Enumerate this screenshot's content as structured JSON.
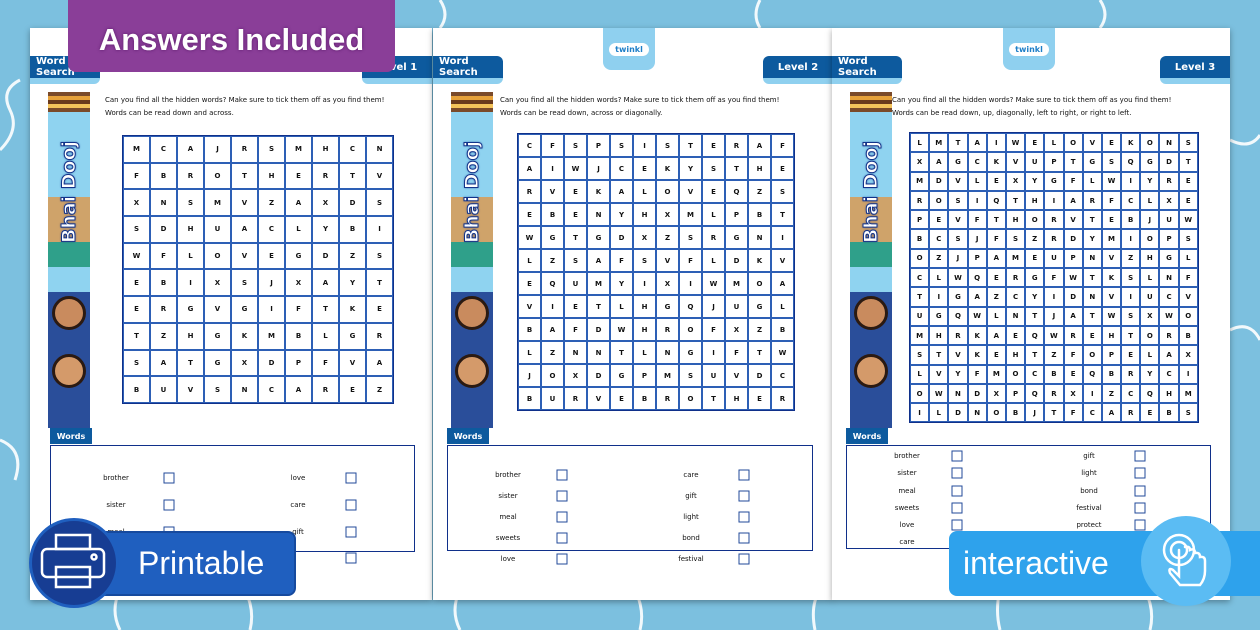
{
  "banner": {
    "answers": "Answers Included",
    "printable": "Printable",
    "interactive": "interactive"
  },
  "logo": "twinkl",
  "theme": "Bhai Dooj",
  "colors": {
    "header": "#0d5a9e",
    "answers_badge": "#8a3e98",
    "printable_badge": "#1f5fbf",
    "interactive_badge": "#2ea2ec",
    "background": "#7cc0df"
  },
  "pages": [
    {
      "header": "Word Search",
      "level": "Level 1",
      "instructions": [
        "Can you find all the hidden words? Make sure to tick them off as you find them!",
        "Words can be read down and across."
      ],
      "grid": [
        "MCAJRSMHCN",
        "FBROTHERTV",
        "XNSMVZAXDS",
        "SDHUACLYBI",
        "WFLOVEGDZS",
        "EBIXSJXAYT",
        "ERGVGIFTKE",
        "TZHGKMBLGR",
        "SATGXDPFVA",
        "BUVSNCAREZ"
      ],
      "words_label": "Words",
      "words_left": [
        "brother",
        "sister",
        "meal",
        ""
      ],
      "words_right": [
        "love",
        "care",
        "gift",
        ""
      ]
    },
    {
      "header": "Word Search",
      "level": "Level 2",
      "instructions": [
        "Can you find all the hidden words? Make sure to tick them off as you find them!",
        "Words can be read down, across or diagonally."
      ],
      "grid": [
        "CFSPSISTERAF",
        "AIWJCEKYSTHE",
        "RVEKALOVEQZS",
        "EBENYHXMLPBT",
        "WGTGDXZSRGNI",
        "LZSAFSVFLDKV",
        "EQUMYIXIWMOA",
        "VIETLHGQJUGL",
        "BAFDWHROFXZB",
        "LZNNTLNGIFTW",
        "JOXDGPMSUVDC",
        "BURVEBROTHER"
      ],
      "words_label": "Words",
      "words_left": [
        "brother",
        "sister",
        "meal",
        "sweets",
        "love"
      ],
      "words_right": [
        "care",
        "gift",
        "light",
        "bond",
        "festival"
      ]
    },
    {
      "header": "Word Search",
      "level": "Level 3",
      "instructions": [
        "Can you find all the hidden words? Make sure to tick them off as you find them!",
        "Words can be read down, up, diagonally, left to right, or right to left."
      ],
      "grid": [
        "LMTAIWELOVEKONS",
        "XAGCKVUPTGSQGDT",
        "MDVLEXYGFLWIYRE",
        "ROSIQTHIARFCLXE",
        "PEVFTHORVTEBJUW",
        "BCSJFSZRDYMIOPS",
        "OZJPAMEUPNVZHGL",
        "CLWQERGFWTKSLNF",
        "TIGAZCYIDNVIUCV",
        "UGQWLNTJATWSXWO",
        "MHRKAEQWREHTORB",
        "STVKEHTZFOPELAX",
        "LVYFMOCBEQBRYCI",
        "OWNDXPQRXIZCQHM",
        "ILDNOBJTFCAREBS"
      ],
      "words_label": "Words",
      "words_left": [
        "brother",
        "sister",
        "meal",
        "sweets",
        "love",
        "care"
      ],
      "words_right": [
        "gift",
        "light",
        "bond",
        "festival",
        "protect",
        ""
      ]
    }
  ]
}
